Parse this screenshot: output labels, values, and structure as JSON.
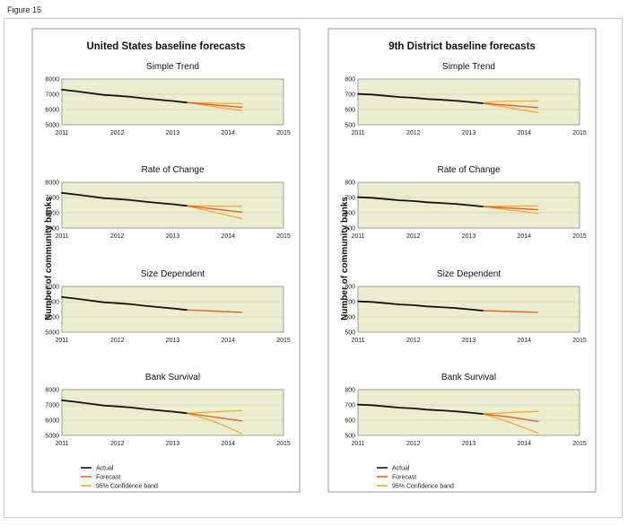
{
  "figure_label": "Figure 15",
  "colors": {
    "actual": "#111111",
    "forecast": "#e8612c",
    "band": "#f6a623",
    "plot_background": "#ebedcf"
  },
  "legend": [
    "Actual",
    "Forecast",
    "95% Confidence band"
  ],
  "ylabel": "Number of community banks",
  "chart_data": [
    {
      "type": "line",
      "panel_title": "United States baseline forecasts",
      "title": "Simple Trend",
      "xlim": [
        2011,
        2015
      ],
      "ylim": [
        5000,
        8000
      ],
      "x_ticks": [
        2011,
        2012,
        2013,
        2014,
        2015
      ],
      "y_ticks": [
        5000,
        6000,
        7000,
        8000
      ],
      "grid": true,
      "series": [
        {
          "name": "Actual",
          "x": [
            2011,
            2011.25,
            2011.5,
            2011.75,
            2012,
            2012.25,
            2012.5,
            2012.75,
            2013,
            2013.25
          ],
          "y": [
            7300,
            7200,
            7080,
            6960,
            6900,
            6830,
            6730,
            6640,
            6560,
            6460
          ]
        },
        {
          "name": "Forecast",
          "x": [
            2013.25,
            2014.25
          ],
          "y": [
            6460,
            6150
          ]
        },
        {
          "name": "95% Confidence band",
          "x": [
            2013.25,
            2014.25
          ],
          "y": [
            6460,
            6380
          ]
        },
        {
          "name": "95% Confidence band",
          "x": [
            2013.25,
            2014.25
          ],
          "y": [
            6460,
            5930
          ]
        }
      ]
    },
    {
      "type": "line",
      "panel_title": "United States baseline forecasts",
      "title": "Rate of Change",
      "xlim": [
        2011,
        2015
      ],
      "ylim": [
        5000,
        8000
      ],
      "x_ticks": [
        2011,
        2012,
        2013,
        2014,
        2015
      ],
      "y_ticks": [
        5000,
        6000,
        7000,
        8000
      ],
      "grid": true,
      "series": [
        {
          "name": "Actual",
          "x": [
            2011,
            2011.25,
            2011.5,
            2011.75,
            2012,
            2012.25,
            2012.5,
            2012.75,
            2013,
            2013.25
          ],
          "y": [
            7300,
            7200,
            7080,
            6960,
            6900,
            6830,
            6730,
            6640,
            6560,
            6460
          ]
        },
        {
          "name": "Forecast",
          "x": [
            2013.25,
            2014.25
          ],
          "y": [
            6460,
            6040
          ]
        },
        {
          "name": "95% Confidence band",
          "x": [
            2013.25,
            2014.25
          ],
          "y": [
            6460,
            6420
          ]
        },
        {
          "name": "95% Confidence band",
          "x": [
            2013.25,
            2014.25
          ],
          "y": [
            6460,
            5620
          ]
        }
      ]
    },
    {
      "type": "line",
      "panel_title": "United States baseline forecasts",
      "title": "Size Dependent",
      "xlim": [
        2011,
        2015
      ],
      "ylim": [
        5000,
        8000
      ],
      "x_ticks": [
        2011,
        2012,
        2013,
        2014,
        2015
      ],
      "y_ticks": [
        5000,
        6000,
        7000,
        8000
      ],
      "grid": true,
      "series": [
        {
          "name": "Actual",
          "x": [
            2011,
            2011.25,
            2011.5,
            2011.75,
            2012,
            2012.25,
            2012.5,
            2012.75,
            2013,
            2013.25
          ],
          "y": [
            7300,
            7200,
            7080,
            6960,
            6900,
            6830,
            6730,
            6640,
            6560,
            6460
          ]
        },
        {
          "name": "Forecast",
          "x": [
            2013.25,
            2014.25
          ],
          "y": [
            6460,
            6300
          ]
        }
      ]
    },
    {
      "type": "line",
      "panel_title": "United States baseline forecasts",
      "title": "Bank Survival",
      "xlim": [
        2011,
        2015
      ],
      "ylim": [
        5000,
        8000
      ],
      "x_ticks": [
        2011,
        2012,
        2013,
        2014,
        2015
      ],
      "y_ticks": [
        5000,
        6000,
        7000,
        8000
      ],
      "grid": true,
      "series": [
        {
          "name": "Actual",
          "x": [
            2011,
            2011.25,
            2011.5,
            2011.75,
            2012,
            2012.25,
            2012.5,
            2012.75,
            2013,
            2013.25
          ],
          "y": [
            7300,
            7200,
            7080,
            6960,
            6900,
            6830,
            6730,
            6640,
            6560,
            6460
          ]
        },
        {
          "name": "Forecast",
          "x": [
            2013.25,
            2013.75,
            2014.25
          ],
          "y": [
            6460,
            6200,
            5950
          ]
        },
        {
          "name": "95% Confidence band",
          "x": [
            2013.25,
            2014.25
          ],
          "y": [
            6460,
            6630
          ]
        },
        {
          "name": "95% Confidence band",
          "x": [
            2013.25,
            2013.5,
            2013.75,
            2014,
            2014.25
          ],
          "y": [
            6460,
            6200,
            5900,
            5530,
            5120
          ]
        }
      ]
    },
    {
      "type": "line",
      "panel_title": "9th District baseline forecasts",
      "title": "Simple Trend",
      "xlim": [
        2011,
        2015
      ],
      "ylim": [
        500,
        800
      ],
      "x_ticks": [
        2011,
        2012,
        2013,
        2014,
        2015
      ],
      "y_ticks": [
        500,
        600,
        700,
        800
      ],
      "grid": true,
      "series": [
        {
          "name": "Actual",
          "x": [
            2011,
            2011.25,
            2011.5,
            2011.75,
            2012,
            2012.25,
            2012.5,
            2012.75,
            2013,
            2013.25
          ],
          "y": [
            702,
            698,
            690,
            682,
            677,
            669,
            664,
            658,
            650,
            641
          ]
        },
        {
          "name": "Forecast",
          "x": [
            2013.25,
            2014.25
          ],
          "y": [
            641,
            613
          ]
        },
        {
          "name": "95% Confidence band",
          "x": [
            2013.25,
            2013.5,
            2014.25
          ],
          "y": [
            641,
            654,
            656
          ]
        },
        {
          "name": "95% Confidence band",
          "x": [
            2013.25,
            2014.25
          ],
          "y": [
            641,
            580
          ]
        }
      ]
    },
    {
      "type": "line",
      "panel_title": "9th District baseline forecasts",
      "title": "Rate of Change",
      "xlim": [
        2011,
        2015
      ],
      "ylim": [
        500,
        800
      ],
      "x_ticks": [
        2011,
        2012,
        2013,
        2014,
        2015
      ],
      "y_ticks": [
        500,
        600,
        700,
        800
      ],
      "grid": true,
      "series": [
        {
          "name": "Actual",
          "x": [
            2011,
            2011.25,
            2011.5,
            2011.75,
            2012,
            2012.25,
            2012.5,
            2012.75,
            2013,
            2013.25
          ],
          "y": [
            702,
            698,
            690,
            682,
            677,
            669,
            664,
            658,
            650,
            641
          ]
        },
        {
          "name": "Forecast",
          "x": [
            2013.25,
            2014.25
          ],
          "y": [
            641,
            620
          ]
        },
        {
          "name": "95% Confidence band",
          "x": [
            2013.25,
            2014.25
          ],
          "y": [
            641,
            645
          ]
        },
        {
          "name": "95% Confidence band",
          "x": [
            2013.25,
            2014.25
          ],
          "y": [
            641,
            595
          ]
        }
      ]
    },
    {
      "type": "line",
      "panel_title": "9th District baseline forecasts",
      "title": "Size Dependent",
      "xlim": [
        2011,
        2015
      ],
      "ylim": [
        500,
        800
      ],
      "x_ticks": [
        2011,
        2012,
        2013,
        2014,
        2015
      ],
      "y_ticks": [
        500,
        600,
        700,
        800
      ],
      "grid": true,
      "series": [
        {
          "name": "Actual",
          "x": [
            2011,
            2011.25,
            2011.5,
            2011.75,
            2012,
            2012.25,
            2012.5,
            2012.75,
            2013,
            2013.25
          ],
          "y": [
            702,
            698,
            690,
            682,
            677,
            669,
            664,
            658,
            650,
            641
          ]
        },
        {
          "name": "Forecast",
          "x": [
            2013.25,
            2014.25
          ],
          "y": [
            641,
            630
          ]
        }
      ]
    },
    {
      "type": "line",
      "panel_title": "9th District baseline forecasts",
      "title": "Bank Survival",
      "xlim": [
        2011,
        2015
      ],
      "ylim": [
        500,
        800
      ],
      "x_ticks": [
        2011,
        2012,
        2013,
        2014,
        2015
      ],
      "y_ticks": [
        500,
        600,
        700,
        800
      ],
      "grid": true,
      "series": [
        {
          "name": "Actual",
          "x": [
            2011,
            2011.25,
            2011.5,
            2011.75,
            2012,
            2012.25,
            2012.5,
            2012.75,
            2013,
            2013.25
          ],
          "y": [
            702,
            698,
            690,
            682,
            677,
            669,
            664,
            658,
            650,
            641
          ]
        },
        {
          "name": "Forecast",
          "x": [
            2013.25,
            2013.75,
            2014.25
          ],
          "y": [
            641,
            620,
            592
          ]
        },
        {
          "name": "95% Confidence band",
          "x": [
            2013.25,
            2014.25
          ],
          "y": [
            641,
            658
          ]
        },
        {
          "name": "95% Confidence band",
          "x": [
            2013.25,
            2013.5,
            2013.75,
            2014,
            2014.25
          ],
          "y": [
            641,
            615,
            585,
            550,
            515
          ]
        }
      ]
    }
  ]
}
